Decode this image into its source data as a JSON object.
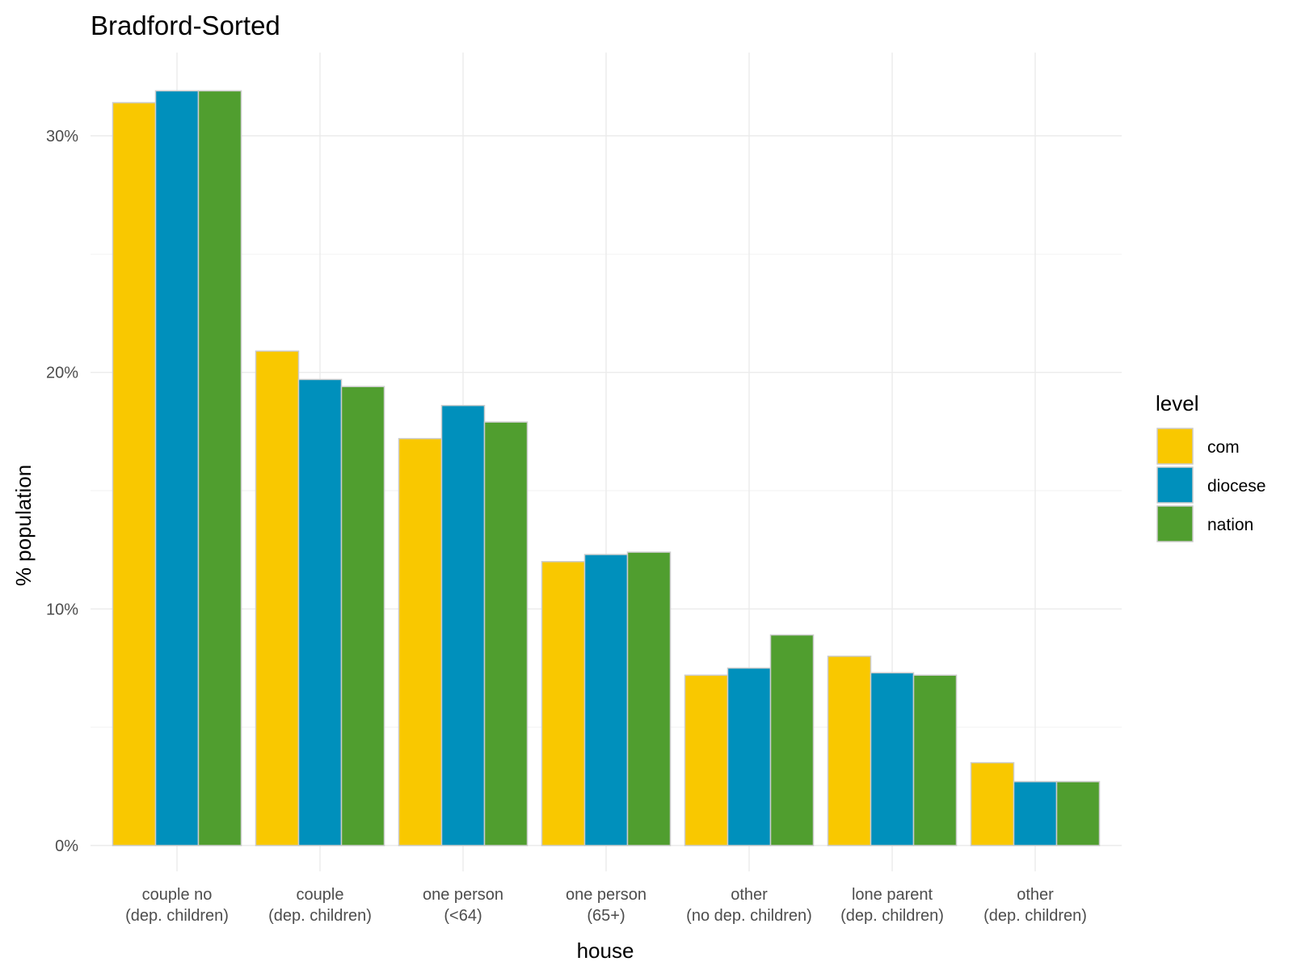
{
  "chart_data": {
    "type": "bar",
    "title": "Bradford-Sorted",
    "xlabel": "house",
    "ylabel": "% population",
    "ylim": [
      0,
      32.5
    ],
    "y_ticks": [
      0,
      10,
      20,
      30
    ],
    "y_tick_labels": [
      "0%",
      "10%",
      "20%",
      "30%"
    ],
    "categories": [
      "couple no\n(dep. children)",
      "couple\n(dep. children)",
      "one person\n(<64)",
      "one person\n(65+)",
      "other\n(no dep. children)",
      "lone parent\n(dep. children)",
      "other\n(dep. children)"
    ],
    "series": [
      {
        "name": "com",
        "color": "#F9C800",
        "values": [
          31.4,
          20.9,
          17.2,
          12.0,
          7.2,
          8.0,
          3.5
        ]
      },
      {
        "name": "diocese",
        "color": "#0090BC",
        "values": [
          31.9,
          19.7,
          18.6,
          12.3,
          7.5,
          7.3,
          2.7
        ]
      },
      {
        "name": "nation",
        "color": "#509E2F",
        "values": [
          31.9,
          19.4,
          17.9,
          12.4,
          8.9,
          7.2,
          2.7
        ]
      }
    ],
    "legend": {
      "title": "level",
      "position": "right"
    },
    "grid": true
  }
}
